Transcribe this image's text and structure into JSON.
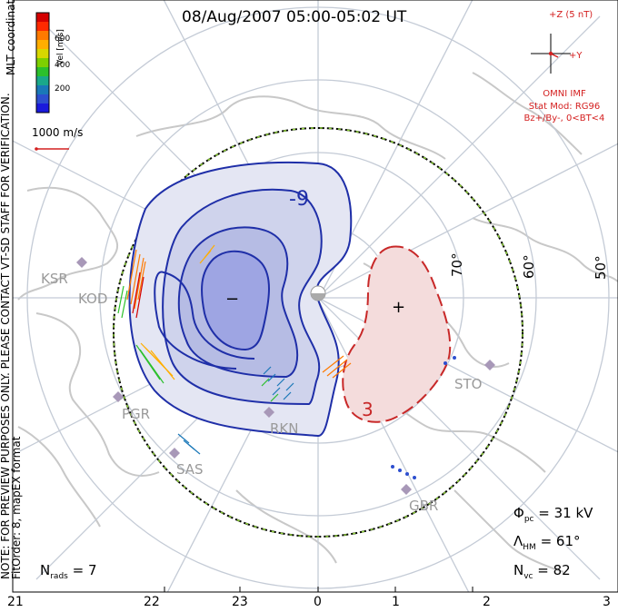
{
  "title": "08/Aug/2007 05:00-05:02 UT",
  "colorbar": {
    "title": "MLT coordinates",
    "unit_label": "Vel [m/s]",
    "tick_labels": [
      "600",
      "400",
      "200"
    ],
    "colors": [
      "#d40000",
      "#ff2a00",
      "#ff7a00",
      "#ffae00",
      "#d8d800",
      "#7ed000",
      "#2cc02c",
      "#1aa88a",
      "#1a78b8",
      "#2d4fcf",
      "#1a1adc"
    ]
  },
  "reference_vector": {
    "label": "1000 m/s",
    "color": "#d42020"
  },
  "imf": {
    "scale_label": "+Z (5 nT)",
    "y_label": "+Y",
    "source": "OMNI IMF",
    "stat_model": "Stat Mod: RG96",
    "condition": "Bz+/By-, 0<BT<4"
  },
  "watermark": "NOTE: FOR PREVIEW PURPOSES ONLY. PLEASE CONTACT VT-SD STAFF FOR VERIFICATION.",
  "fit_note": "FitOrder: 8, mapEX format",
  "stations": [
    "KSR",
    "KOD",
    "PGR",
    "SAS",
    "RKN",
    "STO",
    "GBR"
  ],
  "latitude_labels": [
    "70°",
    "60°",
    "50°"
  ],
  "contours": {
    "negative_label": "-9",
    "positive_label": "3",
    "min_marker": "−",
    "max_marker": "+",
    "negative_color": "#1f2fa8",
    "positive_color": "#c82828"
  },
  "stats": {
    "phi_pc": {
      "symbol": "Φ",
      "sub": "pc",
      "value": "= 31 kV"
    },
    "lambda_hm": {
      "symbol": "Λ",
      "sub": "HM",
      "value": "= 61°"
    },
    "n_vc": {
      "symbol": "N",
      "sub": "vc",
      "value": "= 82"
    },
    "n_rads": {
      "symbol": "N",
      "sub": "rads",
      "value": "= 7"
    }
  },
  "mlt_ticks": [
    "21",
    "22",
    "23",
    "0",
    "1",
    "2",
    "3"
  ]
}
